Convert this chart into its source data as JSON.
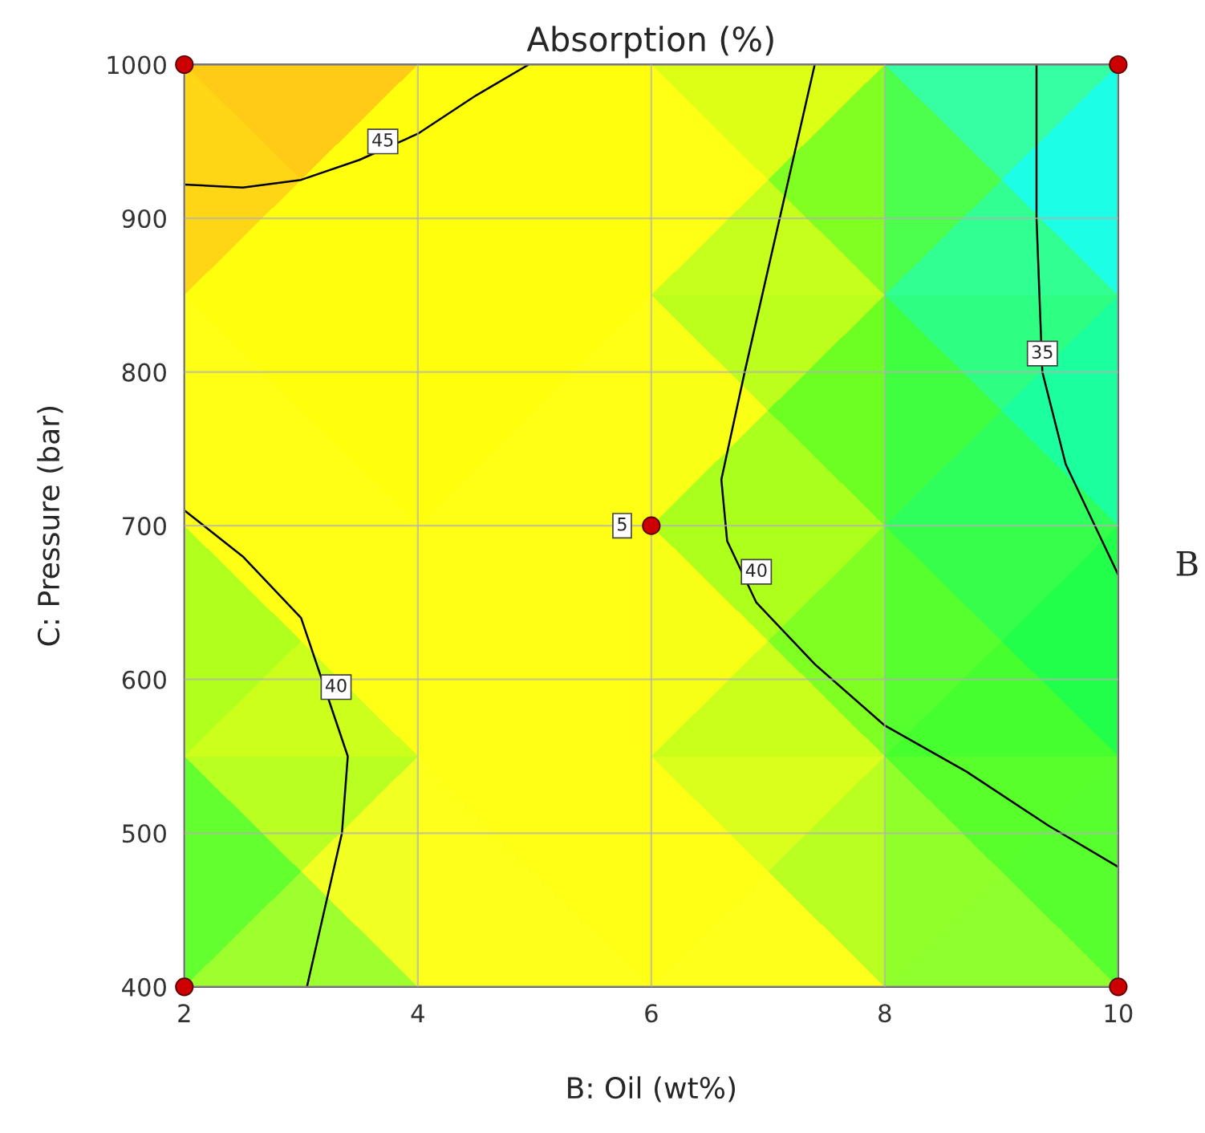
{
  "chart_data": {
    "type": "scatter",
    "title": "Absorption (%)",
    "xlabel": "B: Oil (wt%)",
    "ylabel": "C: Pressure (bar)",
    "xlim": [
      2,
      10
    ],
    "ylim": [
      400,
      1000
    ],
    "xticks": [
      2,
      4,
      6,
      8,
      10
    ],
    "yticks": [
      400,
      500,
      600,
      700,
      800,
      900,
      1000
    ],
    "grid": true,
    "series": [
      {
        "type": "line",
        "marker": "none",
        "color": "#000000",
        "x": [
          2,
          2.5,
          3,
          3.5,
          4,
          4.5,
          4.95
        ],
        "values": [
          922,
          920,
          925,
          938,
          955,
          980,
          1000
        ]
      },
      {
        "type": "line",
        "marker": "none",
        "color": "#000000",
        "x": [
          2,
          2.5,
          3,
          3.4,
          3.35,
          3.2,
          3.05
        ],
        "values": [
          710,
          680,
          640,
          550,
          500,
          450,
          400
        ]
      },
      {
        "type": "line",
        "marker": "none",
        "color": "#000000",
        "x": [
          7.4,
          7.1,
          6.8,
          6.6,
          6.65,
          6.9,
          7.4,
          8,
          8.7,
          9.4,
          10
        ],
        "values": [
          1000,
          900,
          800,
          730,
          690,
          650,
          610,
          570,
          540,
          505,
          478
        ]
      },
      {
        "type": "line",
        "marker": "none",
        "color": "#000000",
        "x": [
          9.3,
          9.3,
          9.35,
          9.55,
          9.8,
          10
        ],
        "values": [
          1000,
          900,
          800,
          740,
          700,
          668
        ]
      },
      {
        "marker": "circle",
        "color": "#cc0000",
        "x": [
          2,
          10,
          6,
          2,
          10
        ],
        "values": [
          1000,
          1000,
          700,
          400,
          400
        ]
      }
    ],
    "annotations": [
      {
        "text": "45",
        "x": 3.7,
        "y": 950
      },
      {
        "text": "40",
        "x": 3.3,
        "y": 595
      },
      {
        "text": "40",
        "x": 6.9,
        "y": 670
      },
      {
        "text": "35",
        "x": 9.35,
        "y": 812
      },
      {
        "text": "5",
        "x": 5.75,
        "y": 700
      },
      "B"
    ]
  }
}
